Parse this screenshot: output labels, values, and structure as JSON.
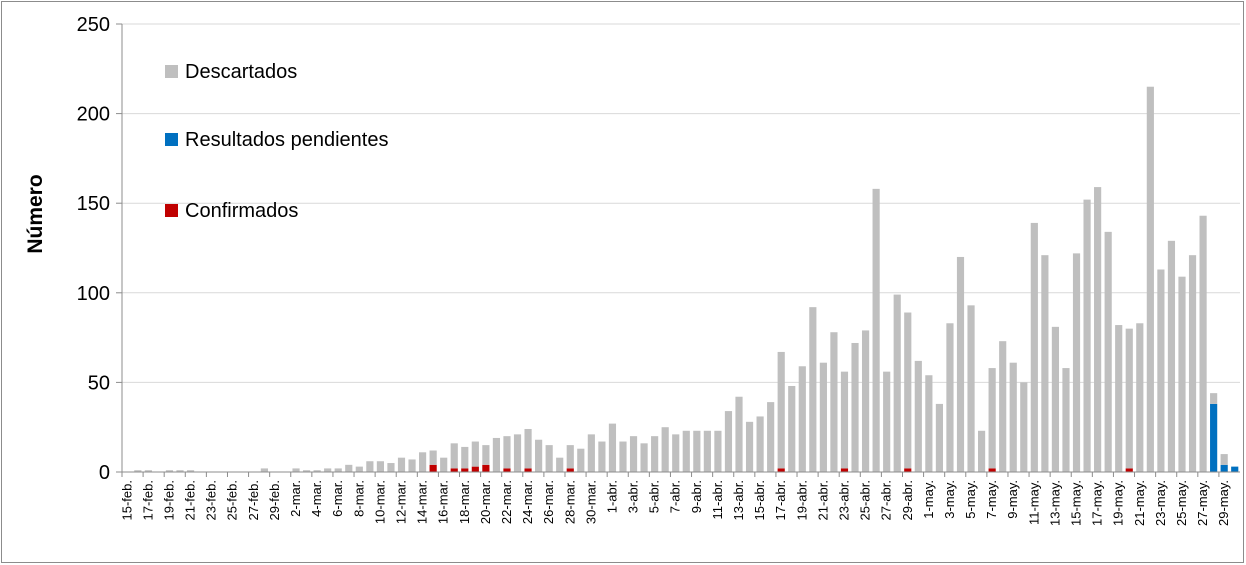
{
  "chart_data": {
    "type": "bar",
    "stacked": true,
    "ylabel": "Número",
    "ylim": [
      0,
      250
    ],
    "yticks": [
      0,
      50,
      100,
      150,
      200,
      250
    ],
    "grid": true,
    "legend_position": "top-left",
    "categories": [
      "15-feb.",
      "16-feb.",
      "17-feb.",
      "18-feb.",
      "19-feb.",
      "20-feb.",
      "21-feb.",
      "22-feb.",
      "23-feb.",
      "24-feb.",
      "25-feb.",
      "26-feb.",
      "27-feb.",
      "28-feb.",
      "29-feb.",
      "1-mar.",
      "2-mar.",
      "3-mar.",
      "4-mar.",
      "5-mar.",
      "6-mar.",
      "7-mar.",
      "8-mar.",
      "9-mar.",
      "10-mar.",
      "11-mar.",
      "12-mar.",
      "13-mar.",
      "14-mar.",
      "15-mar.",
      "16-mar.",
      "17-mar.",
      "18-mar.",
      "19-mar.",
      "20-mar.",
      "21-mar.",
      "22-mar.",
      "23-mar.",
      "24-mar.",
      "25-mar.",
      "26-mar.",
      "27-mar.",
      "28-mar.",
      "29-mar.",
      "30-mar.",
      "31-mar.",
      "1-abr.",
      "2-abr.",
      "3-abr.",
      "4-abr.",
      "5-abr.",
      "6-abr.",
      "7-abr.",
      "8-abr.",
      "9-abr.",
      "10-abr.",
      "11-abr.",
      "12-abr.",
      "13-abr.",
      "14-abr.",
      "15-abr.",
      "16-abr.",
      "17-abr.",
      "18-abr.",
      "19-abr.",
      "20-abr.",
      "21-abr.",
      "22-abr.",
      "23-abr.",
      "24-abr.",
      "25-abr.",
      "26-abr.",
      "27-abr.",
      "28-abr.",
      "29-abr.",
      "30-abr.",
      "1-may.",
      "2-may.",
      "3-may.",
      "4-may.",
      "5-may.",
      "6-may.",
      "7-may.",
      "8-may.",
      "9-may.",
      "10-may.",
      "11-may.",
      "12-may.",
      "13-may.",
      "14-may.",
      "15-may.",
      "16-may.",
      "17-may.",
      "18-may.",
      "19-may.",
      "20-may.",
      "21-may.",
      "22-may.",
      "23-may.",
      "24-may.",
      "25-may.",
      "26-may.",
      "27-may.",
      "28-may.",
      "29-may.",
      "30-may."
    ],
    "tick_labels": [
      "15-feb.",
      "17-feb.",
      "19-feb.",
      "21-feb.",
      "23-feb.",
      "25-feb.",
      "27-feb.",
      "29-feb.",
      "2-mar.",
      "4-mar.",
      "6-mar.",
      "8-mar.",
      "10-mar.",
      "12-mar.",
      "14-mar.",
      "16-mar.",
      "18-mar.",
      "20-mar.",
      "22-mar.",
      "24-mar.",
      "26-mar.",
      "28-mar.",
      "30-mar.",
      "1-abr.",
      "3-abr.",
      "5-abr.",
      "7-abr.",
      "9-abr.",
      "11-abr.",
      "13-abr.",
      "15-abr.",
      "17-abr.",
      "19-abr.",
      "21-abr.",
      "23-abr.",
      "25-abr.",
      "27-abr.",
      "29-abr.",
      "1-may.",
      "3-may.",
      "5-may.",
      "7-may.",
      "9-may.",
      "11-may.",
      "13-may.",
      "15-may.",
      "17-may.",
      "19-may.",
      "21-may.",
      "23-may.",
      "25-may.",
      "27-may.",
      "29-may."
    ],
    "series": [
      {
        "name": "Confirmados",
        "color": "#c00000",
        "values": [
          0,
          0,
          0,
          0,
          0,
          0,
          0,
          0,
          0,
          0,
          0,
          0,
          0,
          0,
          0,
          0,
          0,
          0,
          0,
          0,
          0,
          0,
          0,
          0,
          0,
          0,
          0,
          0,
          0,
          4,
          0,
          2,
          2,
          3,
          4,
          0,
          2,
          0,
          2,
          0,
          0,
          0,
          2,
          0,
          0,
          0,
          0,
          0,
          0,
          0,
          0,
          0,
          0,
          0,
          0,
          0,
          0,
          0,
          0,
          0,
          0,
          0,
          2,
          0,
          0,
          0,
          0,
          0,
          2,
          0,
          0,
          0,
          0,
          0,
          2,
          0,
          0,
          0,
          0,
          0,
          0,
          0,
          2,
          0,
          0,
          0,
          0,
          0,
          0,
          0,
          0,
          0,
          0,
          0,
          0,
          2,
          0,
          0,
          0,
          0,
          0,
          0,
          0,
          0,
          0,
          0
        ]
      },
      {
        "name": "Resultados pendientes",
        "color": "#0070c0",
        "values": [
          0,
          0,
          0,
          0,
          0,
          0,
          0,
          0,
          0,
          0,
          0,
          0,
          0,
          0,
          0,
          0,
          0,
          0,
          0,
          0,
          0,
          0,
          0,
          0,
          0,
          0,
          0,
          0,
          0,
          0,
          0,
          0,
          0,
          0,
          0,
          0,
          0,
          0,
          0,
          0,
          0,
          0,
          0,
          0,
          0,
          0,
          0,
          0,
          0,
          0,
          0,
          0,
          0,
          0,
          0,
          0,
          0,
          0,
          0,
          0,
          0,
          0,
          0,
          0,
          0,
          0,
          0,
          0,
          0,
          0,
          0,
          0,
          0,
          0,
          0,
          0,
          0,
          0,
          0,
          0,
          0,
          0,
          0,
          0,
          0,
          0,
          0,
          0,
          0,
          0,
          0,
          0,
          0,
          0,
          0,
          0,
          0,
          0,
          0,
          0,
          0,
          0,
          0,
          38,
          4,
          3
        ]
      },
      {
        "name": "Descartados",
        "color": "#bfbfbf",
        "values": [
          0,
          1,
          1,
          0,
          1,
          1,
          1,
          0,
          0,
          0,
          0,
          0,
          0,
          2,
          0,
          0,
          2,
          1,
          1,
          2,
          2,
          4,
          3,
          6,
          6,
          5,
          8,
          7,
          11,
          8,
          8,
          14,
          12,
          14,
          11,
          19,
          18,
          21,
          22,
          18,
          15,
          8,
          13,
          13,
          21,
          17,
          27,
          17,
          20,
          16,
          20,
          25,
          21,
          23,
          23,
          23,
          23,
          34,
          42,
          28,
          31,
          39,
          65,
          48,
          59,
          92,
          61,
          78,
          54,
          72,
          79,
          158,
          56,
          99,
          87,
          62,
          54,
          38,
          83,
          120,
          93,
          23,
          56,
          73,
          61,
          50,
          139,
          121,
          81,
          58,
          122,
          152,
          159,
          134,
          82,
          78,
          83,
          215,
          113,
          129,
          109,
          121,
          143,
          6,
          6,
          0
        ]
      }
    ],
    "legend_order": [
      "Descartados",
      "Resultados pendientes",
      "Confirmados"
    ]
  }
}
